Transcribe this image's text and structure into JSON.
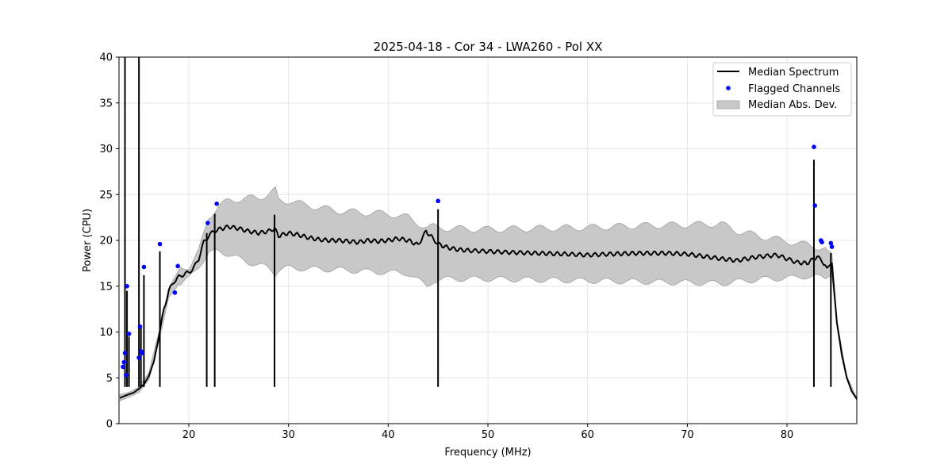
{
  "chart_data": {
    "type": "line",
    "title": "2025-04-18 - Cor 34 - LWA260 - Pol XX",
    "xlabel": "Frequency (MHz)",
    "ylabel": "Power (CPU)",
    "xlim": [
      13,
      87
    ],
    "ylim": [
      0,
      40
    ],
    "xticks": [
      20,
      30,
      40,
      50,
      60,
      70,
      80
    ],
    "yticks": [
      0,
      5,
      10,
      15,
      20,
      25,
      30,
      35,
      40
    ],
    "xtick_labels": [
      "20",
      "30",
      "40",
      "50",
      "60",
      "70",
      "80"
    ],
    "ytick_labels": [
      "0",
      "5",
      "10",
      "15",
      "20",
      "25",
      "30",
      "35",
      "40"
    ],
    "grid": true,
    "legend_position": "top-right",
    "legend": {
      "median": "Median Spectrum",
      "flagged": "Flagged Channels",
      "mad": "Median Abs. Dev."
    },
    "colors": {
      "median": "#000000",
      "flagged": "#0000ff",
      "mad": "#c8c8c8",
      "mad_edge": "#a0a0a0",
      "grid": "#e6e6e6"
    },
    "series": [
      {
        "name": "Median Spectrum",
        "x": [
          13.1,
          13.5,
          14.0,
          14.5,
          15.0,
          15.5,
          16.0,
          16.5,
          17.0,
          17.5,
          18.0,
          18.5,
          19.0,
          19.5,
          20.0,
          20.5,
          21.0,
          21.5,
          22.0,
          22.5,
          23.0,
          24.0,
          25.0,
          26.0,
          27.0,
          28.0,
          28.6,
          29.0,
          30.0,
          31.0,
          32.0,
          33.0,
          34.0,
          35.0,
          36.0,
          37.0,
          38.0,
          39.0,
          40.0,
          41.0,
          42.0,
          43.0,
          43.8,
          44.5,
          45.0,
          46.0,
          47.0,
          48.0,
          50.0,
          52.0,
          55.0,
          58.0,
          60.0,
          62.0,
          65.0,
          68.0,
          70.0,
          72.0,
          73.4,
          75.0,
          77.0,
          79.0,
          81.0,
          82.0,
          83.0,
          83.5,
          84.0,
          84.5,
          85.0,
          85.5,
          86.0,
          86.5,
          87.0
        ],
        "values": [
          2.8,
          3.0,
          3.2,
          3.4,
          3.8,
          4.3,
          5.2,
          6.8,
          9.5,
          12.5,
          14.5,
          15.5,
          16.0,
          16.3,
          16.5,
          17.0,
          18.0,
          19.8,
          20.5,
          21.0,
          21.2,
          21.5,
          21.3,
          21.0,
          20.8,
          21.0,
          21.3,
          20.5,
          20.8,
          20.6,
          20.3,
          20.1,
          20.0,
          20.0,
          19.9,
          19.8,
          20.0,
          19.9,
          20.0,
          20.2,
          20.0,
          19.5,
          21.0,
          20.2,
          19.6,
          19.2,
          19.0,
          18.9,
          18.8,
          18.7,
          18.6,
          18.5,
          18.4,
          18.5,
          18.6,
          18.6,
          18.5,
          18.2,
          18.0,
          17.8,
          18.2,
          18.4,
          17.6,
          17.5,
          18.2,
          17.8,
          17.0,
          17.5,
          11.0,
          7.5,
          5.0,
          3.5,
          2.7
        ]
      },
      {
        "name": "Median Abs. Dev.",
        "x": [
          13.1,
          14.0,
          15.0,
          16.0,
          17.0,
          18.0,
          19.0,
          20.0,
          21.0,
          22.0,
          23.0,
          24.0,
          25.0,
          26.0,
          27.0,
          28.0,
          28.7,
          29.0,
          30.0,
          32.0,
          35.0,
          38.0,
          40.0,
          42.0,
          43.9,
          44.5,
          46.0,
          50.0,
          55.0,
          60.0,
          65.0,
          70.0,
          73.4,
          75.0,
          78.0,
          80.5,
          82.0,
          83.0,
          84.0,
          84.5,
          85.0,
          86.0,
          87.0
        ],
        "upper": [
          3.2,
          3.4,
          4.0,
          5.6,
          10.0,
          14.8,
          16.8,
          17.2,
          18.8,
          22.5,
          23.8,
          24.3,
          24.5,
          24.6,
          24.7,
          25.0,
          25.5,
          24.4,
          24.3,
          23.8,
          23.2,
          23.0,
          22.9,
          22.5,
          21.3,
          21.5,
          21.3,
          21.2,
          21.3,
          21.4,
          21.6,
          21.7,
          21.8,
          21.0,
          20.3,
          19.8,
          19.5,
          19.3,
          19.0,
          18.6,
          11.3,
          5.2,
          2.8
        ],
        "lower": [
          2.5,
          2.9,
          3.4,
          4.8,
          9.0,
          13.8,
          15.2,
          15.8,
          17.2,
          18.6,
          18.8,
          18.5,
          18.0,
          17.6,
          17.3,
          17.0,
          16.4,
          16.8,
          17.0,
          16.9,
          16.8,
          16.6,
          16.5,
          16.4,
          15.0,
          15.6,
          15.8,
          15.8,
          15.7,
          15.6,
          15.5,
          15.4,
          15.3,
          15.5,
          15.8,
          15.9,
          16.1,
          16.0,
          15.9,
          16.2,
          10.8,
          4.9,
          2.5
        ]
      }
    ],
    "spikes": [
      {
        "x": 13.6,
        "y": 40
      },
      {
        "x": 13.8,
        "y": 14.5
      },
      {
        "x": 14.0,
        "y": 9.5
      },
      {
        "x": 15.0,
        "y": 40
      },
      {
        "x": 15.2,
        "y": 10.5
      },
      {
        "x": 15.5,
        "y": 16.2
      },
      {
        "x": 17.1,
        "y": 18.8
      },
      {
        "x": 21.8,
        "y": 20.8
      },
      {
        "x": 22.6,
        "y": 22.9
      },
      {
        "x": 28.6,
        "y": 22.8
      },
      {
        "x": 45.0,
        "y": 23.4
      },
      {
        "x": 82.7,
        "y": 28.8
      },
      {
        "x": 84.4,
        "y": 18.6
      }
    ],
    "flagged_channels": {
      "x": [
        13.4,
        13.5,
        13.6,
        13.7,
        13.8,
        14.0,
        15.0,
        15.1,
        15.2,
        15.3,
        15.5,
        17.1,
        18.6,
        18.9,
        21.9,
        22.8,
        45.0,
        82.7,
        82.8,
        83.4,
        83.5,
        84.4,
        84.5
      ],
      "y": [
        6.2,
        6.7,
        7.7,
        5.3,
        15.0,
        9.8,
        7.2,
        10.6,
        7.9,
        7.7,
        17.1,
        19.6,
        14.3,
        17.2,
        21.9,
        24.0,
        24.3,
        30.2,
        23.8,
        20.0,
        19.8,
        19.7,
        19.3
      ]
    }
  }
}
